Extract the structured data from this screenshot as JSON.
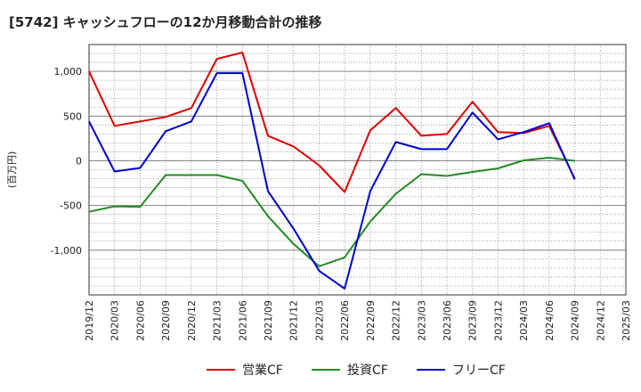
{
  "chart_data": {
    "type": "line",
    "title": "[5742]  キャッシュフローの12か月移動合計の推移",
    "ylabel": "(百万円)",
    "xlabel": "",
    "ylim": [
      -1500,
      1300
    ],
    "yticks": [
      -1000,
      -500,
      0,
      500,
      1000
    ],
    "ytick_labels": [
      "-1,000",
      "-500",
      "0",
      "500",
      "1,000"
    ],
    "categories": [
      "2019/12",
      "2020/03",
      "2020/06",
      "2020/09",
      "2020/12",
      "2021/03",
      "2021/06",
      "2021/09",
      "2021/12",
      "2022/03",
      "2022/06",
      "2022/09",
      "2022/12",
      "2023/03",
      "2023/06",
      "2023/09",
      "2023/12",
      "2024/03",
      "2024/06",
      "2024/09",
      "2024/12",
      "2025/03"
    ],
    "grid": true,
    "legend_position": "bottom",
    "series": [
      {
        "name": "営業CF",
        "color": "#dd0000",
        "values": [
          1000,
          390,
          440,
          490,
          590,
          1140,
          1210,
          280,
          160,
          -50,
          -350,
          340,
          590,
          280,
          300,
          660,
          320,
          310,
          390,
          -200,
          null,
          null
        ]
      },
      {
        "name": "投資CF",
        "color": "#228b22",
        "values": [
          -570,
          -510,
          -515,
          -160,
          -160,
          -160,
          -225,
          -620,
          -930,
          -1180,
          -1080,
          -680,
          -370,
          -150,
          -170,
          -125,
          -85,
          5,
          35,
          0,
          null,
          null
        ]
      },
      {
        "name": "フリーCF",
        "color": "#0000cc",
        "values": [
          440,
          -120,
          -80,
          330,
          440,
          980,
          980,
          -340,
          -760,
          -1230,
          -1430,
          -340,
          210,
          130,
          130,
          540,
          240,
          320,
          420,
          -210,
          null,
          null
        ]
      }
    ]
  }
}
